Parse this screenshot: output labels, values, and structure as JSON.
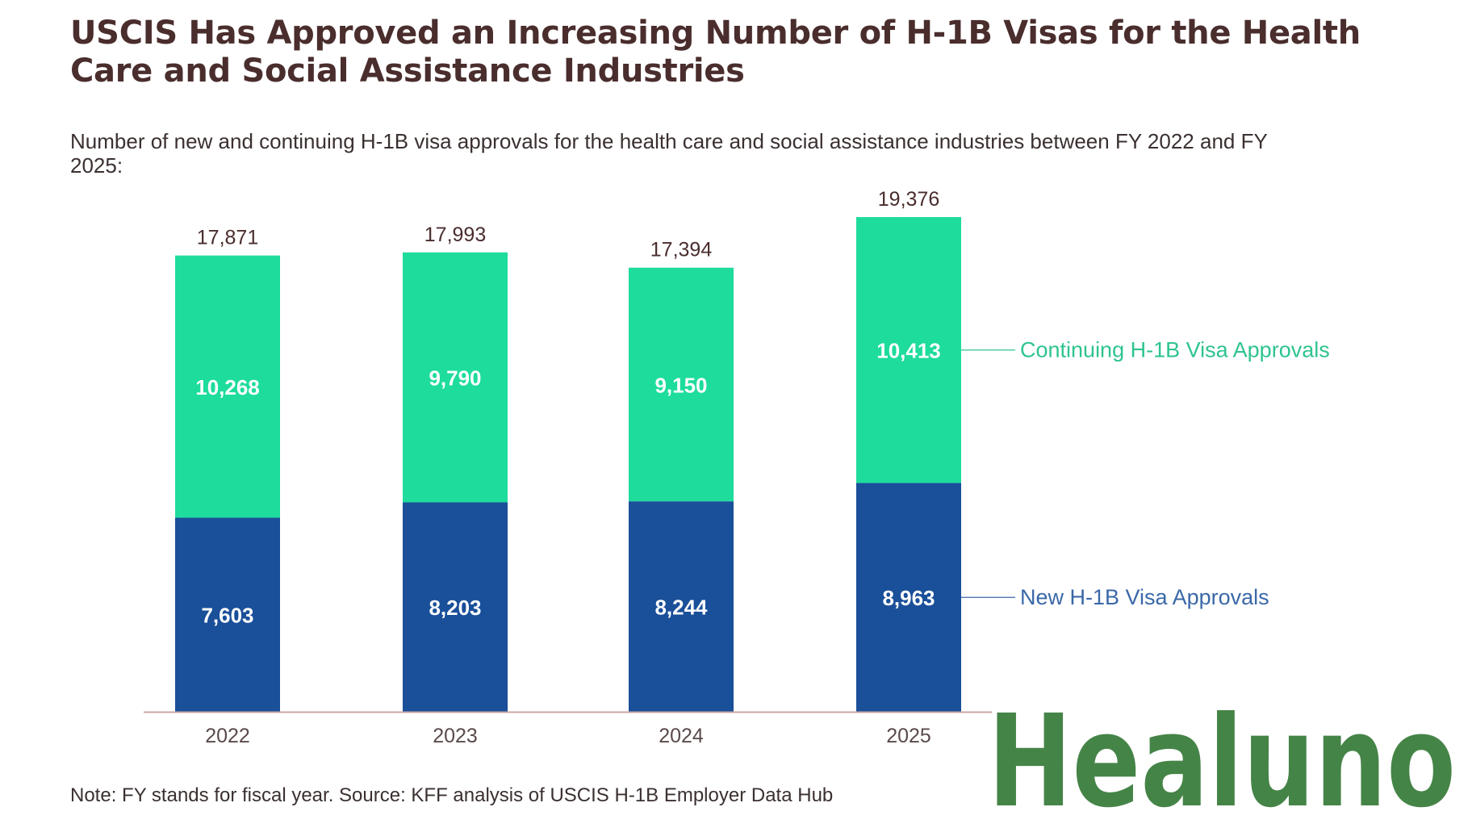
{
  "title": "USCIS Has Approved an Increasing Number of H-1B Visas for the Health Care and Social Assistance Industries",
  "subtitle": "Number of new and continuing H-1B visa approvals for the health care and social assistance industries between FY 2022 and FY 2025:",
  "note": "Note: FY stands for fiscal year. Source: KFF analysis of USCIS H-1B Employer Data Hub",
  "logo": {
    "text": "Healuno",
    "color": "#458447"
  },
  "chart_data": {
    "type": "bar",
    "stacked": true,
    "categories": [
      "2022",
      "2023",
      "2024",
      "2025"
    ],
    "series": [
      {
        "name": "New H-1B Visa Approvals",
        "values": [
          7603,
          8203,
          8244,
          8963
        ],
        "labels": [
          "7,603",
          "8,203",
          "8,244",
          "8,963"
        ],
        "color": "#1a4f99",
        "label_color": "#3a68a8"
      },
      {
        "name": "Continuing H-1B Visa Approvals",
        "values": [
          10268,
          9790,
          9150,
          10413
        ],
        "labels": [
          "10,268",
          "9,790",
          "9,150",
          "10,413"
        ],
        "color": "#1edc9c",
        "label_color": "#2ec48e"
      }
    ],
    "totals": [
      17871,
      17993,
      17394,
      19376
    ],
    "total_labels": [
      "17,871",
      "17,993",
      "17,394",
      "19,376"
    ],
    "ylim": [
      0,
      19376
    ],
    "grid": false,
    "legend": "right, inline labels"
  }
}
